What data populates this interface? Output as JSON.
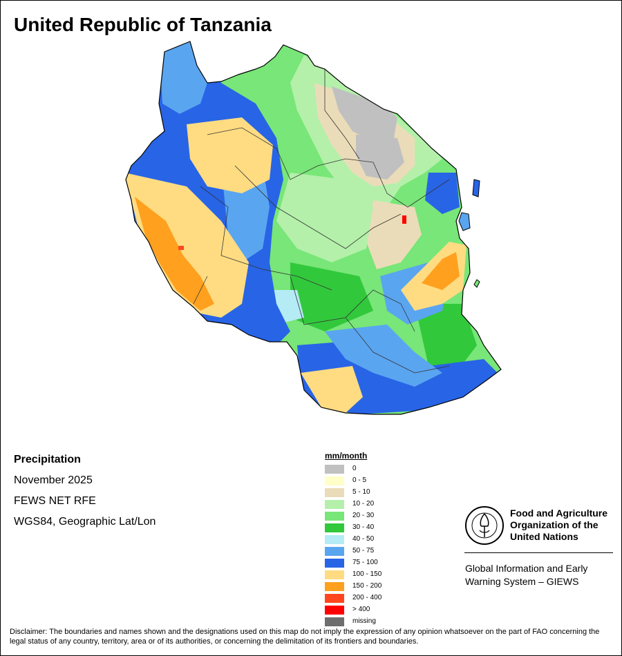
{
  "title": "United Republic of Tanzania",
  "info": {
    "variable": "Precipitation",
    "period": "November 2025",
    "source": "FEWS NET RFE",
    "projection": "WGS84, Geographic Lat/Lon"
  },
  "legend": {
    "title": "mm/month",
    "items": [
      {
        "label": "0",
        "color": "#c0c0c0"
      },
      {
        "label": "0 - 5",
        "color": "#ffffc8"
      },
      {
        "label": "5 - 10",
        "color": "#ebdcb9"
      },
      {
        "label": "10 - 20",
        "color": "#b4f0aa"
      },
      {
        "label": "20 - 30",
        "color": "#78e678"
      },
      {
        "label": "30 - 40",
        "color": "#32c83c"
      },
      {
        "label": "40 - 50",
        "color": "#b4ebf5"
      },
      {
        "label": "50 - 75",
        "color": "#5aa5f0"
      },
      {
        "label": "75 - 100",
        "color": "#2864e6"
      },
      {
        "label": "100 - 150",
        "color": "#ffdc82"
      },
      {
        "label": "150 - 200",
        "color": "#ffa01e"
      },
      {
        "label": "200 - 400",
        "color": "#ff461e"
      },
      {
        "label": "> 400",
        "color": "#ff0000"
      },
      {
        "label": "missing",
        "color": "#6e6e6e"
      }
    ]
  },
  "organization": {
    "name_line1": "Food and Agriculture",
    "name_line2": "Organization of the",
    "name_line3": "United Nations",
    "system_line1": "Global Information and Early",
    "system_line2": "Warning System – GIEWS"
  },
  "disclaimer": "Disclaimer: The boundaries and names shown and the designations used on this map do not imply the expression of any opinion whatsoever on the part of FAO concerning the legal status of any country, territory, area or of its authorities, or concerning the delimitation of its frontiers and boundaries."
}
